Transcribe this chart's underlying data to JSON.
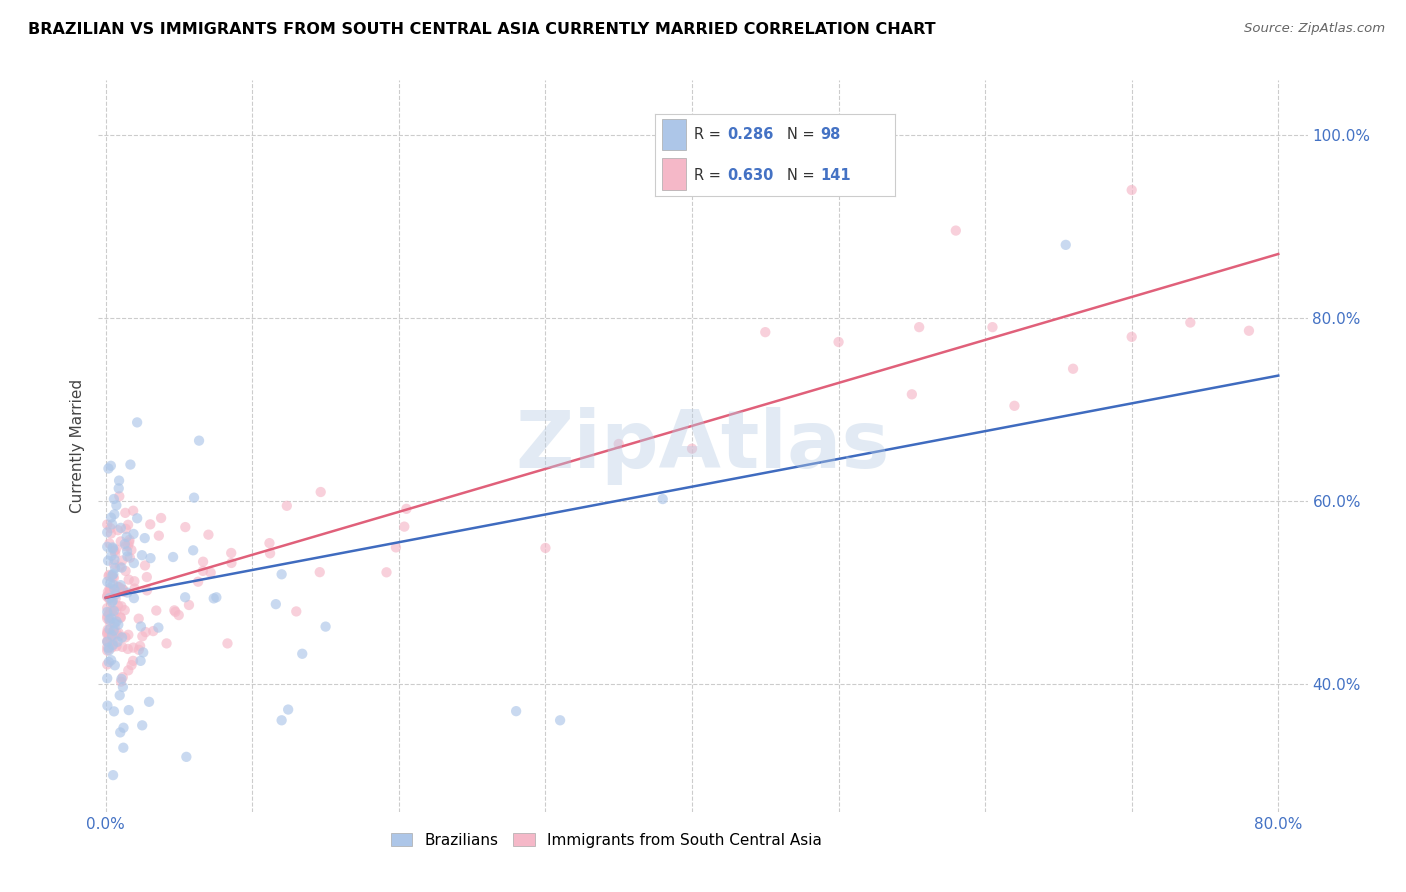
{
  "title": "BRAZILIAN VS IMMIGRANTS FROM SOUTH CENTRAL ASIA CURRENTLY MARRIED CORRELATION CHART",
  "source": "Source: ZipAtlas.com",
  "ylabel": "Currently Married",
  "ytick_labels": [
    "40.0%",
    "60.0%",
    "80.0%",
    "100.0%"
  ],
  "ytick_values": [
    0.4,
    0.6,
    0.8,
    1.0
  ],
  "xlim": [
    -0.005,
    0.82
  ],
  "ylim": [
    0.26,
    1.06
  ],
  "watermark": "ZipAtlas",
  "legend_entries": [
    {
      "label": "Brazilians",
      "R": "0.286",
      "N": "98",
      "color": "#adc6e8",
      "line_color": "#3f6bbf"
    },
    {
      "label": "Immigrants from South Central Asia",
      "R": "0.630",
      "N": "141",
      "color": "#f5b8c8",
      "line_color": "#e0607a"
    }
  ],
  "blue_line_x0": 0.0,
  "blue_line_x1": 0.8,
  "blue_line_y0": 0.494,
  "blue_line_y1": 0.737,
  "pink_line_x0": 0.0,
  "pink_line_x1": 0.8,
  "pink_line_y0": 0.494,
  "pink_line_y1": 0.87,
  "scatter_size": 55,
  "scatter_alpha": 0.65,
  "grid_color": "#cccccc",
  "title_fontsize": 11.5,
  "tick_label_color": "#4472c4",
  "background_color": "#ffffff",
  "legend_R_color": "#333333",
  "legend_N_color": "#4472c4"
}
